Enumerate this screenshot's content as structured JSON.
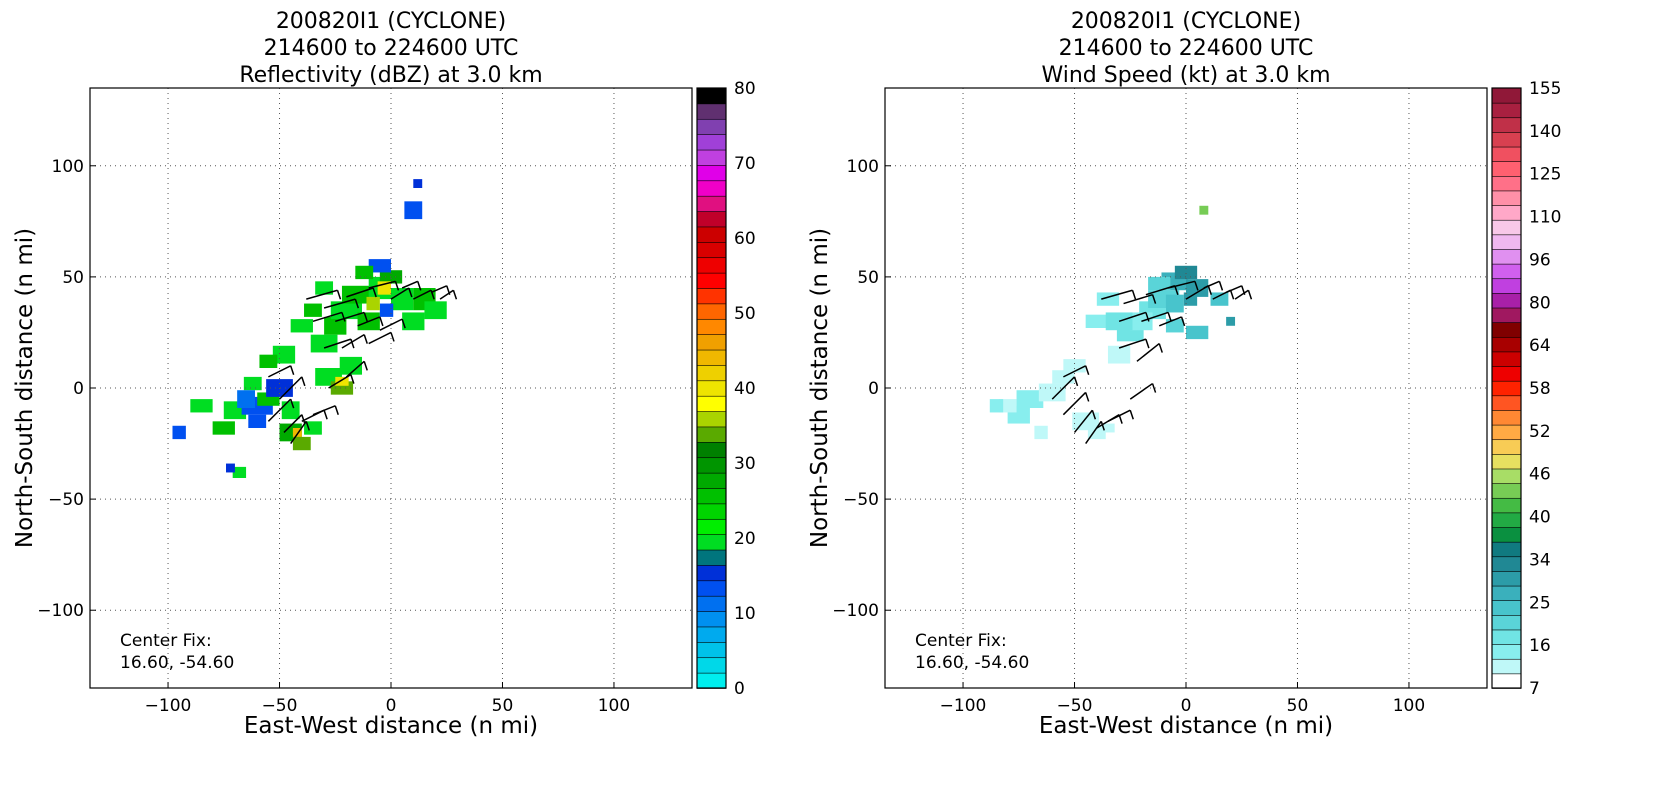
{
  "chart_data": [
    {
      "type": "heatmap",
      "title_lines": [
        "200820I1 (CYCLONE)",
        "214600 to 224600 UTC",
        "Reflectivity (dBZ) at 3.0 km"
      ],
      "xlabel": "East-West distance (n mi)",
      "ylabel": "North-South distance (n mi)",
      "xlim": [
        -135,
        135
      ],
      "ylim": [
        -135,
        135
      ],
      "xticks": [
        -100,
        -50,
        0,
        50,
        100
      ],
      "yticks": [
        -100,
        -50,
        0,
        50,
        100
      ],
      "xtick_labels": [
        "−100",
        "−50",
        "0",
        "50",
        "100"
      ],
      "ytick_labels": [
        "−100",
        "−50",
        "0",
        "50",
        "100"
      ],
      "grid": true,
      "annotation_lines": [
        "Center Fix:",
        "16.60, -54.60"
      ],
      "colorbar": {
        "levels": 32,
        "colors": [
          "#00eeee",
          "#00d8e8",
          "#00c2ea",
          "#00aaee",
          "#0090f0",
          "#0070f0",
          "#0050f0",
          "#0030d8",
          "#00757d",
          "#00dd22",
          "#00ee00",
          "#00d400",
          "#00c000",
          "#00aa00",
          "#009500",
          "#008000",
          "#5aaa00",
          "#aad400",
          "#ffff00",
          "#eee400",
          "#eed000",
          "#f0b800",
          "#f0a000",
          "#ff8800",
          "#ff6600",
          "#ff3300",
          "#ff0000",
          "#ee0000",
          "#d80000",
          "#cc0000",
          "#c0002a",
          "#e01080",
          "#f000c8",
          "#e000e8",
          "#c040e0",
          "#a040d8",
          "#8040b0",
          "#603070",
          "#000000"
        ],
        "labels": [
          "0",
          "10",
          "20",
          "30",
          "40",
          "50",
          "60",
          "70",
          "80"
        ],
        "min": 0,
        "max": 80
      },
      "cells": [
        [
          -70,
          -10,
          10,
          8,
          "#00dd22"
        ],
        [
          -60,
          -8,
          14,
          8,
          "#0050f0"
        ],
        [
          -55,
          -5,
          10,
          6,
          "#00c000"
        ],
        [
          -50,
          0,
          12,
          8,
          "#0030d8"
        ],
        [
          -62,
          2,
          8,
          6,
          "#00dd22"
        ],
        [
          -75,
          -18,
          10,
          6,
          "#00c000"
        ],
        [
          -85,
          -8,
          10,
          6,
          "#00dd22"
        ],
        [
          -45,
          -20,
          10,
          8,
          "#00aa00"
        ],
        [
          -40,
          -25,
          8,
          6,
          "#5aaa00"
        ],
        [
          -35,
          -18,
          8,
          6,
          "#00dd22"
        ],
        [
          -48,
          15,
          10,
          8,
          "#00dd22"
        ],
        [
          -55,
          12,
          8,
          6,
          "#00c000"
        ],
        [
          -30,
          20,
          12,
          8,
          "#00dd22"
        ],
        [
          -25,
          28,
          10,
          8,
          "#00c000"
        ],
        [
          -20,
          35,
          14,
          8,
          "#00dd22"
        ],
        [
          -15,
          42,
          14,
          8,
          "#00c000"
        ],
        [
          -5,
          45,
          10,
          10,
          "#00dd22"
        ],
        [
          0,
          50,
          10,
          6,
          "#00aa00"
        ],
        [
          5,
          40,
          10,
          10,
          "#00dd22"
        ],
        [
          -10,
          30,
          10,
          8,
          "#00c000"
        ],
        [
          -28,
          5,
          12,
          8,
          "#00dd22"
        ],
        [
          -22,
          0,
          10,
          6,
          "#5aaa00"
        ],
        [
          -18,
          10,
          10,
          8,
          "#00dd22"
        ],
        [
          15,
          40,
          10,
          10,
          "#00c000"
        ],
        [
          20,
          35,
          10,
          8,
          "#00dd22"
        ],
        [
          10,
          30,
          10,
          8,
          "#00dd22"
        ],
        [
          -35,
          35,
          8,
          6,
          "#00c000"
        ],
        [
          -40,
          28,
          10,
          6,
          "#00dd22"
        ],
        [
          -95,
          -20,
          6,
          6,
          "#0050f0"
        ],
        [
          -68,
          -38,
          6,
          5,
          "#00dd22"
        ],
        [
          -72,
          -36,
          4,
          4,
          "#0030d8"
        ],
        [
          10,
          80,
          8,
          8,
          "#0050f0"
        ],
        [
          12,
          92,
          4,
          4,
          "#0030d8"
        ],
        [
          -60,
          -15,
          8,
          6,
          "#0050f0"
        ],
        [
          -65,
          -5,
          8,
          8,
          "#0070f0"
        ],
        [
          -45,
          -10,
          8,
          8,
          "#00dd22"
        ],
        [
          -5,
          55,
          10,
          6,
          "#0050f0"
        ],
        [
          -12,
          52,
          8,
          6,
          "#00c000"
        ],
        [
          -3,
          45,
          6,
          6,
          "#eee400"
        ],
        [
          -22,
          3,
          6,
          4,
          "#eee400"
        ],
        [
          -42,
          -20,
          4,
          4,
          "#f0b800"
        ],
        [
          -2,
          35,
          6,
          6,
          "#0050f0"
        ],
        [
          -30,
          45,
          8,
          6,
          "#00dd22"
        ],
        [
          -8,
          38,
          6,
          6,
          "#aad400"
        ]
      ],
      "barbs": [
        [
          -38,
          40,
          -24,
          44
        ],
        [
          -30,
          36,
          -16,
          40
        ],
        [
          -20,
          41,
          -8,
          45
        ],
        [
          -10,
          45,
          2,
          48
        ],
        [
          -35,
          30,
          -22,
          34
        ],
        [
          -25,
          30,
          -12,
          34
        ],
        [
          -15,
          28,
          -5,
          32
        ],
        [
          -30,
          18,
          -18,
          22
        ],
        [
          -22,
          18,
          -12,
          24
        ],
        [
          -10,
          20,
          0,
          25
        ],
        [
          -5,
          26,
          5,
          31
        ],
        [
          0,
          40,
          8,
          45
        ],
        [
          5,
          45,
          12,
          48
        ],
        [
          10,
          40,
          18,
          44
        ],
        [
          18,
          43,
          25,
          46
        ],
        [
          22,
          40,
          28,
          44
        ],
        [
          -50,
          -5,
          -40,
          5
        ],
        [
          -55,
          -15,
          -45,
          -5
        ],
        [
          -48,
          -20,
          -40,
          -12
        ],
        [
          -45,
          -25,
          -38,
          -15
        ],
        [
          -40,
          -15,
          -30,
          -10
        ],
        [
          -35,
          -12,
          -25,
          -8
        ],
        [
          -55,
          5,
          -45,
          10
        ],
        [
          -28,
          0,
          -18,
          6
        ],
        [
          -20,
          5,
          -12,
          12
        ]
      ]
    },
    {
      "type": "heatmap",
      "title_lines": [
        "200820I1 (CYCLONE)",
        "214600 to 224600 UTC",
        "Wind Speed (kt) at 3.0 km"
      ],
      "xlabel": "East-West distance (n mi)",
      "ylabel": "North-South distance (n mi)",
      "xlim": [
        -135,
        135
      ],
      "ylim": [
        -135,
        135
      ],
      "xticks": [
        -100,
        -50,
        0,
        50,
        100
      ],
      "yticks": [
        -100,
        -50,
        0,
        50,
        100
      ],
      "xtick_labels": [
        "−100",
        "−50",
        "0",
        "50",
        "100"
      ],
      "ytick_labels": [
        "−100",
        "−50",
        "0",
        "50",
        "100"
      ],
      "grid": true,
      "annotation_lines": [
        "Center Fix:",
        "16.60, -54.60"
      ],
      "colorbar": {
        "levels": 36,
        "colors": [
          "#ffffff",
          "#bff8f8",
          "#88eeee",
          "#70e4e4",
          "#5ad4d8",
          "#48c4cc",
          "#3ab0bc",
          "#2c9ca8",
          "#208894",
          "#107a80",
          "#0a9040",
          "#22aa44",
          "#44bb44",
          "#77cc55",
          "#a8dd66",
          "#e6e060",
          "#f8cc55",
          "#ffaa44",
          "#ff8833",
          "#ff5522",
          "#ff2200",
          "#ee0000",
          "#cc0000",
          "#a80000",
          "#800000",
          "#a01860",
          "#a820a8",
          "#c040e0",
          "#d060ee",
          "#e090f0",
          "#f0b8f0",
          "#f8c8e8",
          "#ffa8c8",
          "#ff90a8",
          "#ff7088",
          "#ff6070",
          "#f05060",
          "#d84050",
          "#c03048",
          "#a82040",
          "#901838"
        ],
        "labels": [
          "7",
          "16",
          "25",
          "34",
          "40",
          "46",
          "52",
          "58",
          "64",
          "80",
          "96",
          "110",
          "125",
          "140",
          "155"
        ],
        "min": 7,
        "max": 155
      },
      "cells": [
        [
          -70,
          -5,
          12,
          8,
          "#88eeee"
        ],
        [
          -60,
          -2,
          12,
          8,
          "#bff8f8"
        ],
        [
          -75,
          -12,
          10,
          8,
          "#88eeee"
        ],
        [
          -80,
          -8,
          8,
          6,
          "#bff8f8"
        ],
        [
          -55,
          5,
          10,
          6,
          "#bff8f8"
        ],
        [
          -45,
          -15,
          12,
          8,
          "#bff8f8"
        ],
        [
          -40,
          -20,
          8,
          6,
          "#bff8f8"
        ],
        [
          -50,
          10,
          10,
          6,
          "#bff8f8"
        ],
        [
          -30,
          15,
          10,
          8,
          "#bff8f8"
        ],
        [
          -25,
          25,
          12,
          8,
          "#70e4e4"
        ],
        [
          -15,
          35,
          12,
          8,
          "#70e4e4"
        ],
        [
          -10,
          40,
          14,
          8,
          "#5ad4d8"
        ],
        [
          -5,
          48,
          12,
          8,
          "#3ab0bc"
        ],
        [
          0,
          52,
          10,
          6,
          "#208894"
        ],
        [
          5,
          45,
          10,
          8,
          "#2c9ca8"
        ],
        [
          -20,
          30,
          10,
          8,
          "#88eeee"
        ],
        [
          -35,
          40,
          10,
          6,
          "#88eeee"
        ],
        [
          -40,
          30,
          10,
          6,
          "#88eeee"
        ],
        [
          -30,
          30,
          12,
          8,
          "#70e4e4"
        ],
        [
          5,
          25,
          10,
          6,
          "#48c4cc"
        ],
        [
          -5,
          28,
          8,
          6,
          "#5ad4d8"
        ],
        [
          15,
          40,
          8,
          6,
          "#48c4cc"
        ],
        [
          -5,
          38,
          8,
          8,
          "#48c4cc"
        ],
        [
          8,
          80,
          4,
          4,
          "#77cc55"
        ],
        [
          -12,
          47,
          10,
          6,
          "#5ad4d8"
        ],
        [
          2,
          40,
          6,
          6,
          "#2c9ca8"
        ],
        [
          20,
          30,
          4,
          4,
          "#2c9ca8"
        ],
        [
          -85,
          -8,
          6,
          6,
          "#88eeee"
        ],
        [
          -65,
          -20,
          6,
          6,
          "#bff8f8"
        ],
        [
          -35,
          -18,
          6,
          4,
          "#bff8f8"
        ]
      ],
      "barbs": [
        [
          -38,
          40,
          -24,
          44
        ],
        [
          -28,
          38,
          -15,
          42
        ],
        [
          -18,
          42,
          -5,
          46
        ],
        [
          -8,
          45,
          4,
          48
        ],
        [
          -30,
          30,
          -18,
          34
        ],
        [
          -20,
          30,
          -8,
          34
        ],
        [
          -12,
          28,
          -2,
          32
        ],
        [
          -30,
          18,
          -18,
          22
        ],
        [
          -22,
          12,
          -12,
          20
        ],
        [
          0,
          40,
          10,
          46
        ],
        [
          8,
          45,
          15,
          48
        ],
        [
          12,
          40,
          20,
          44
        ],
        [
          18,
          43,
          25,
          46
        ],
        [
          22,
          40,
          28,
          44
        ],
        [
          -60,
          -5,
          -50,
          5
        ],
        [
          -55,
          -12,
          -45,
          -2
        ],
        [
          -50,
          -20,
          -42,
          -10
        ],
        [
          -45,
          -25,
          -38,
          -15
        ],
        [
          -40,
          -18,
          -30,
          -12
        ],
        [
          -35,
          -15,
          -25,
          -10
        ],
        [
          -55,
          5,
          -45,
          10
        ],
        [
          -25,
          -5,
          -15,
          2
        ]
      ]
    }
  ]
}
